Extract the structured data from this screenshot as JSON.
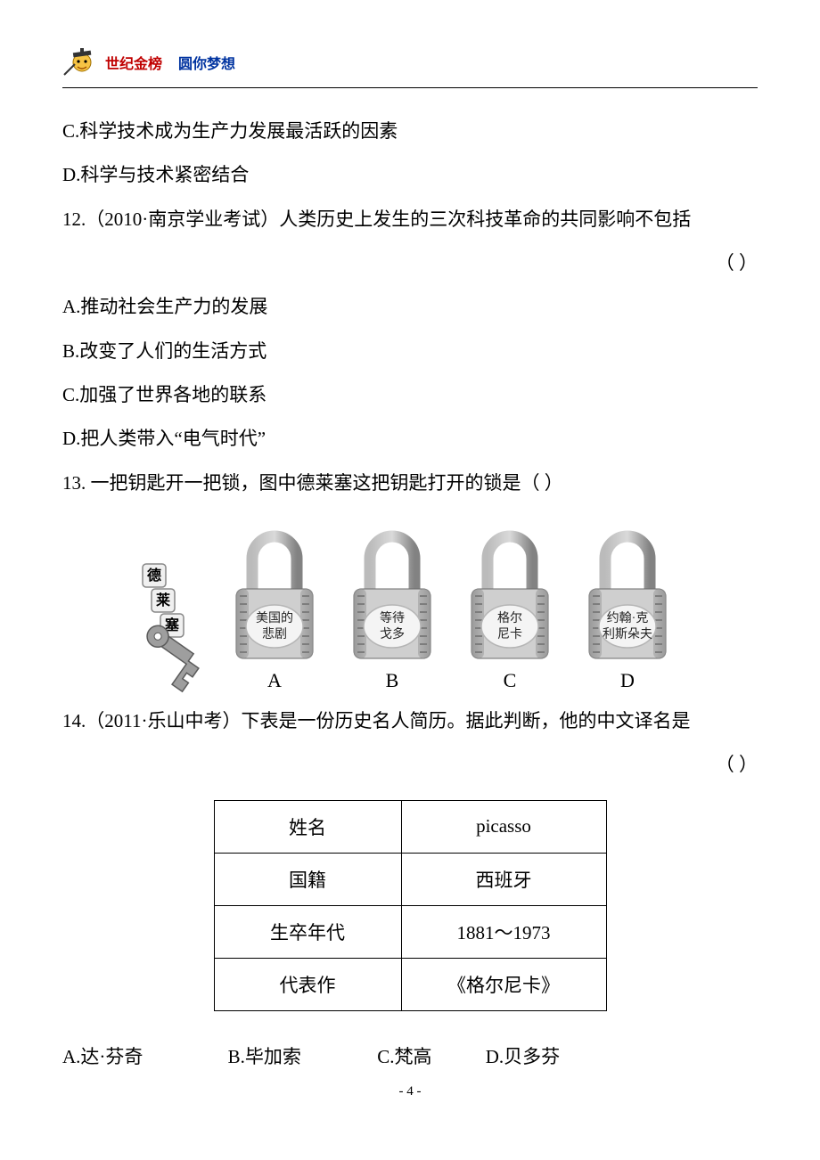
{
  "header": {
    "brand1": "世纪金榜",
    "brand2": "圆你梦想"
  },
  "lines": {
    "optC_11": "C.科学技术成为生产力发展最活跃的因素",
    "optD_11": "D.科学与技术紧密结合",
    "q12_stem": "12.（2010·南京学业考试）人类历史上发生的三次科技革命的共同影响不包括",
    "q12_paren": "（    ）",
    "q12_A": "A.推动社会生产力的发展",
    "q12_B": "B.改变了人们的生活方式",
    "q12_C": "C.加强了世界各地的联系",
    "q12_D": "D.把人类带入“电气时代”",
    "q13_stem": "13. 一把钥匙开一把锁，图中德莱塞这把钥匙打开的锁是（    ）",
    "q14_stem": "14.（2011·乐山中考）下表是一份历史名人简历。据此判断，他的中文译名是",
    "q14_paren": "（    ）",
    "q14_A": "A.达·芬奇",
    "q14_B": "B.毕加索",
    "q14_C": "C.梵高",
    "q14_D": "D.贝多芬"
  },
  "locks": {
    "key_label_chars": [
      "德",
      "莱",
      "塞"
    ],
    "items": [
      {
        "label1": "美国的",
        "label2": "悲剧",
        "letter": "A"
      },
      {
        "label1": "等待",
        "label2": "戈多",
        "letter": "B"
      },
      {
        "label1": "格尔",
        "label2": "尼卡",
        "letter": "C"
      },
      {
        "label1": "约翰·克",
        "label2": "利斯朵夫",
        "letter": "D"
      }
    ],
    "colors": {
      "shackle_light": "#d0d0d0",
      "shackle_dark": "#8a8a8a",
      "body_light": "#cfcfcf",
      "body_dark": "#9a9a9a",
      "stripe": "#7d7d7d",
      "plate": "#f4f4f4",
      "plate_border": "#b5b5b5",
      "text": "#222222",
      "key_fill": "#9e9e9e",
      "key_edge": "#5a5a5a",
      "tag_fill": "#f0f0f0",
      "tag_border": "#888888"
    }
  },
  "table": {
    "rows": [
      [
        "姓名",
        "picasso"
      ],
      [
        "国籍",
        "西班牙"
      ],
      [
        "生卒年代",
        "1881～1973"
      ],
      [
        "代表作",
        "《格尔尼卡》"
      ]
    ]
  },
  "footer": {
    "page": "- 4 -"
  }
}
